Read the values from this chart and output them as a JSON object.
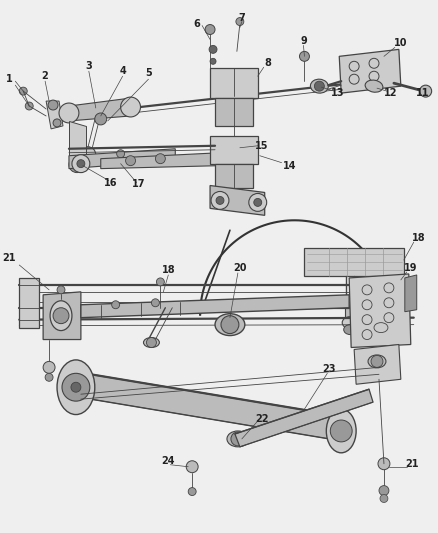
{
  "bg_color": "#efefef",
  "fig_width": 4.38,
  "fig_height": 5.33,
  "dpi": 100,
  "line_color": "#444444",
  "text_color": "#222222",
  "label_fontsize": 7.0,
  "lw_thick": 1.6,
  "lw_med": 1.0,
  "lw_thin": 0.6,
  "gray_dark": "#666666",
  "gray_mid": "#999999",
  "gray_light": "#cccccc",
  "gray_fill": "#bbbbbb",
  "white": "#ffffff"
}
